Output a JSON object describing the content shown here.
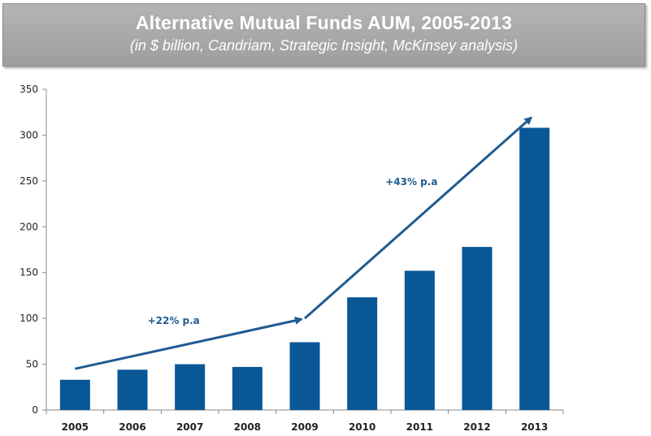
{
  "title": "Alternative Mutual Funds AUM, 2005-2013",
  "subtitle": "(in $ billion, Candriam, Strategic Insight, McKinsey analysis)",
  "chart_data": {
    "type": "bar",
    "categories": [
      "2005",
      "2006",
      "2007",
      "2008",
      "2009",
      "2010",
      "2011",
      "2012",
      "2013"
    ],
    "values": [
      33,
      44,
      50,
      47,
      74,
      123,
      152,
      178,
      308
    ],
    "ylim": [
      0,
      350
    ],
    "yticks": [
      0,
      50,
      100,
      150,
      200,
      250,
      300,
      350
    ],
    "grid": false,
    "bar_color": "#0a5796",
    "annotations": [
      {
        "text": "+22% p.a",
        "from": [
          "2005",
          45
        ],
        "to": [
          "2009",
          100
        ]
      },
      {
        "text": "+43% p.a",
        "from": [
          "2009",
          100
        ],
        "to": [
          "2013",
          320
        ]
      }
    ]
  }
}
